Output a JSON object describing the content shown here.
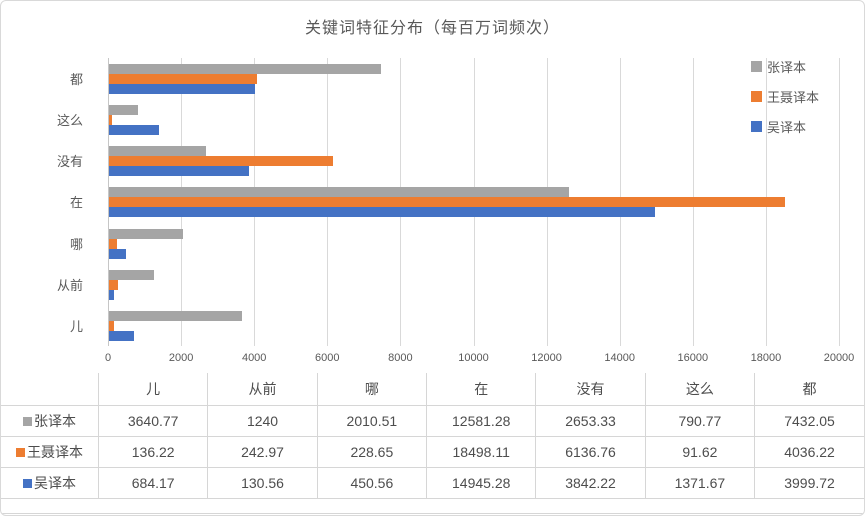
{
  "chart_data": {
    "type": "bar",
    "orientation": "horizontal",
    "title": "关键词特征分布（每百万词频次）",
    "categories_top_to_bottom": [
      "都",
      "这么",
      "没有",
      "在",
      "哪",
      "从前",
      "儿"
    ],
    "series": [
      {
        "name": "张译本",
        "color": "#a5a5a5",
        "values": [
          7432.05,
          790.77,
          2653.33,
          12581.28,
          2010.51,
          1240,
          3640.77
        ]
      },
      {
        "name": "王聂译本",
        "color": "#ed7d31",
        "values": [
          4036.22,
          91.62,
          6136.76,
          18498.11,
          228.65,
          242.97,
          136.22
        ]
      },
      {
        "name": "吴译本",
        "color": "#4472c4",
        "values": [
          3999.72,
          1371.67,
          3842.22,
          14945.28,
          450.56,
          130.56,
          684.17
        ]
      }
    ],
    "xlim": [
      0,
      20000
    ],
    "x_ticks": [
      0,
      2000,
      4000,
      6000,
      8000,
      10000,
      12000,
      14000,
      16000,
      18000,
      20000
    ],
    "grid": true,
    "legend_position": "top-right"
  },
  "table": {
    "columns": [
      "",
      "儿",
      "从前",
      "哪",
      "在",
      "没有",
      "这么",
      "都"
    ],
    "rows": [
      {
        "name": "张译本",
        "color": "#a5a5a5",
        "values": [
          "3640.77",
          "1240",
          "2010.51",
          "12581.28",
          "2653.33",
          "790.77",
          "7432.05"
        ]
      },
      {
        "name": "王聂译本",
        "color": "#ed7d31",
        "values": [
          "136.22",
          "242.97",
          "228.65",
          "18498.11",
          "6136.76",
          "91.62",
          "4036.22"
        ]
      },
      {
        "name": "吴译本",
        "color": "#4472c4",
        "values": [
          "684.17",
          "130.56",
          "450.56",
          "14945.28",
          "3842.22",
          "1371.67",
          "3999.72"
        ]
      }
    ]
  },
  "colors": {
    "grid": "#d9d9d9",
    "axis_text": "#595959",
    "table_border": "#d6d6d6"
  }
}
